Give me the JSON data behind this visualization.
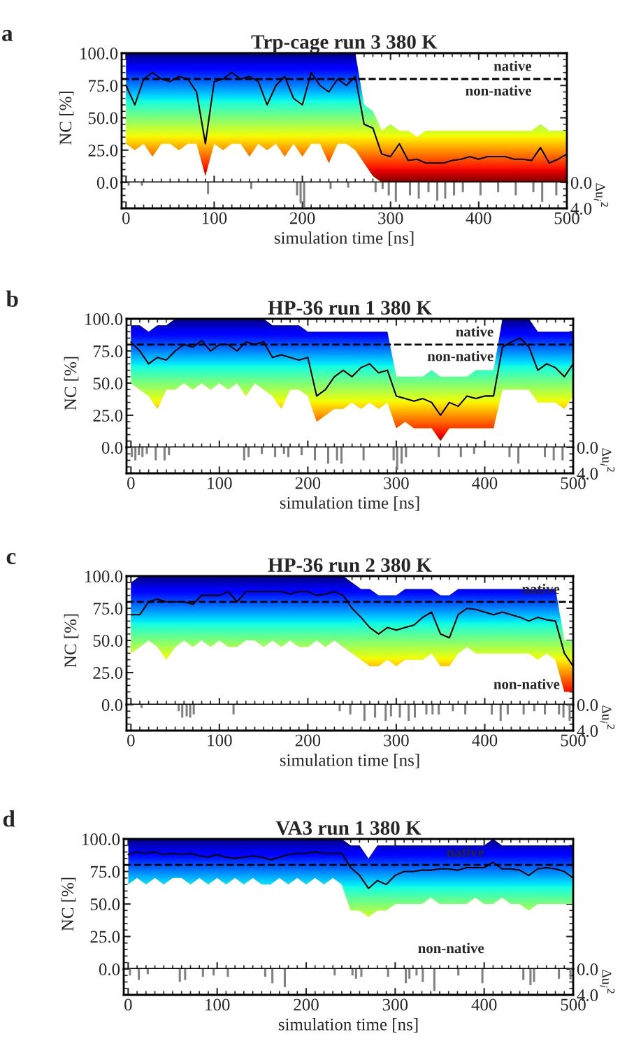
{
  "chart_data": [
    {
      "type": "line",
      "title": "Trp-cage run 3 380 K",
      "ylabel": "NC [%]",
      "xlim": [
        -5,
        500
      ],
      "xticks": [
        0,
        100,
        200,
        300,
        400,
        500
      ],
      "ylim": [
        0,
        100
      ],
      "yticks": [
        {
          "value": 0,
          "label": "0.0"
        },
        {
          "value": 25,
          "label": "25.0"
        },
        {
          "value": 50,
          "label": "50.0"
        },
        {
          "value": 75,
          "label": "75.0"
        },
        {
          "value": 100,
          "label": "100.0"
        }
      ],
      "tick_labels": "y",
      "x": [
        0,
        10,
        20,
        30,
        40,
        50,
        60,
        70,
        80,
        90,
        100,
        110,
        120,
        130,
        140,
        150,
        160,
        170,
        180,
        190,
        200,
        210,
        220,
        230,
        240,
        250,
        260,
        270,
        280,
        290,
        300,
        310,
        320,
        330,
        340,
        350,
        360,
        370,
        380,
        390,
        400,
        410,
        420,
        430,
        440,
        450,
        460,
        470,
        480,
        490,
        500
      ],
      "series": [
        {
          "type": "line",
          "color": "#000000",
          "values": [
            75,
            60,
            80,
            85,
            80,
            78,
            82,
            80,
            70,
            30,
            78,
            80,
            85,
            80,
            82,
            78,
            60,
            75,
            82,
            65,
            60,
            85,
            75,
            70,
            80,
            75,
            82,
            45,
            42,
            22,
            20,
            30,
            17,
            18,
            15,
            15,
            15,
            17,
            18,
            20,
            18,
            20,
            20,
            20,
            18,
            18,
            17,
            27,
            15,
            18,
            22
          ],
          "lower": [
            30,
            25,
            30,
            20,
            30,
            30,
            25,
            30,
            30,
            5,
            30,
            25,
            30,
            30,
            20,
            30,
            25,
            30,
            20,
            30,
            20,
            30,
            30,
            15,
            30,
            30,
            25,
            15,
            5,
            0,
            0,
            0,
            0,
            0,
            0,
            0,
            0,
            0,
            0,
            0,
            0,
            0,
            0,
            0,
            0,
            0,
            0,
            0,
            0,
            0,
            0
          ],
          "upper": [
            100,
            100,
            100,
            100,
            100,
            100,
            100,
            100,
            100,
            100,
            100,
            100,
            100,
            100,
            100,
            100,
            100,
            100,
            100,
            100,
            100,
            100,
            100,
            100,
            100,
            100,
            100,
            60,
            55,
            40,
            45,
            40,
            40,
            35,
            40,
            40,
            40,
            40,
            40,
            40,
            40,
            40,
            40,
            40,
            40,
            40,
            40,
            45,
            40,
            40,
            40
          ]
        }
      ],
      "ref_lines": [
        {
          "axis": "y",
          "value": 80,
          "line_style": "dashed",
          "color": "#000000"
        }
      ],
      "annotations": [
        "a",
        "native",
        "non-native"
      ]
    },
    {
      "type": "bar",
      "xlabel": "simulation time [ns]",
      "ylabel": "Δu$_{i}$$^{2}$",
      "xlim": [
        -5,
        500
      ],
      "xticks": [
        0,
        100,
        200,
        300,
        400,
        500
      ],
      "ylim": [
        4,
        0
      ],
      "yticks": [
        {
          "value": 0,
          "label": "0.0"
        },
        {
          "value": 4,
          "label": "4.0"
        }
      ],
      "color": "#808080",
      "x": [
        3,
        18,
        93,
        142,
        194,
        198,
        202,
        232,
        252,
        283,
        291,
        298,
        306,
        322,
        332,
        343,
        353,
        362,
        372,
        382,
        402,
        422,
        442,
        462,
        472,
        488
      ],
      "values": [
        0.5,
        0.5,
        1.8,
        1.0,
        2.0,
        3.2,
        3.8,
        1.0,
        0.8,
        1.5,
        1.0,
        2.0,
        3.0,
        2.0,
        2.5,
        1.5,
        2.8,
        2.5,
        2.0,
        1.5,
        2.0,
        1.5,
        2.0,
        1.5,
        3.0,
        2.0
      ]
    },
    {
      "type": "line",
      "title": "HP-36 run 1 380 K",
      "ylabel": "NC [%]",
      "xlim": [
        -5,
        500
      ],
      "xticks": [
        0,
        100,
        200,
        300,
        400,
        500
      ],
      "ylim": [
        0,
        100
      ],
      "yticks": [
        {
          "value": 0,
          "label": "0.0"
        },
        {
          "value": 25,
          "label": "25.0"
        },
        {
          "value": 50,
          "label": "50.0"
        },
        {
          "value": 75,
          "label": "75.0"
        },
        {
          "value": 100,
          "label": "100.0"
        }
      ],
      "tick_labels": "y",
      "x": [
        0,
        10,
        20,
        30,
        40,
        50,
        60,
        70,
        80,
        90,
        100,
        110,
        120,
        130,
        140,
        150,
        160,
        170,
        180,
        190,
        200,
        210,
        220,
        230,
        240,
        250,
        260,
        270,
        280,
        290,
        300,
        310,
        320,
        330,
        340,
        350,
        360,
        370,
        380,
        390,
        400,
        410,
        420,
        430,
        440,
        450,
        460,
        470,
        480,
        490,
        500
      ],
      "series": [
        {
          "type": "line",
          "color": "#000000",
          "values": [
            82,
            75,
            65,
            70,
            68,
            75,
            80,
            78,
            83,
            75,
            80,
            80,
            75,
            82,
            80,
            82,
            70,
            72,
            70,
            68,
            70,
            40,
            45,
            55,
            60,
            55,
            62,
            65,
            58,
            60,
            40,
            38,
            36,
            38,
            35,
            25,
            35,
            32,
            40,
            38,
            40,
            40,
            78,
            82,
            85,
            78,
            60,
            65,
            62,
            55,
            65
          ],
          "lower": [
            50,
            45,
            40,
            30,
            45,
            45,
            50,
            45,
            50,
            45,
            50,
            45,
            50,
            40,
            50,
            45,
            40,
            30,
            45,
            45,
            40,
            20,
            25,
            30,
            30,
            35,
            30,
            35,
            30,
            35,
            15,
            20,
            15,
            15,
            15,
            5,
            15,
            15,
            15,
            15,
            15,
            15,
            45,
            45,
            45,
            45,
            35,
            35,
            35,
            30,
            40
          ],
          "upper": [
            95,
            95,
            90,
            95,
            95,
            100,
            100,
            100,
            100,
            100,
            100,
            100,
            100,
            100,
            100,
            100,
            95,
            95,
            95,
            95,
            90,
            90,
            90,
            90,
            90,
            90,
            90,
            90,
            90,
            90,
            55,
            55,
            55,
            55,
            60,
            55,
            55,
            55,
            55,
            60,
            60,
            60,
            100,
            100,
            100,
            100,
            90,
            90,
            90,
            90,
            90
          ]
        }
      ],
      "ref_lines": [
        {
          "axis": "y",
          "value": 80,
          "line_style": "dashed",
          "color": "#000000"
        }
      ],
      "annotations": [
        "b",
        "native",
        "non-native"
      ]
    },
    {
      "type": "bar",
      "xlabel": "simulation time [ns]",
      "ylabel": "Δu$_{i}$$^{2}$",
      "xlim": [
        -5,
        500
      ],
      "xticks": [
        0,
        100,
        200,
        300,
        400,
        500
      ],
      "ylim": [
        4,
        0
      ],
      "yticks": [
        {
          "value": 0,
          "label": "0.0"
        },
        {
          "value": 4,
          "label": "4.0"
        }
      ],
      "color": "#808080",
      "x": [
        1,
        5,
        9,
        13,
        18,
        28,
        38,
        43,
        128,
        133,
        148,
        163,
        173,
        178,
        193,
        208,
        223,
        233,
        238,
        263,
        297,
        301,
        306,
        311,
        348,
        373,
        388,
        428,
        438,
        468,
        478,
        488
      ],
      "values": [
        1.5,
        2.0,
        1.2,
        1.5,
        1.0,
        2.0,
        2.0,
        1.2,
        2.0,
        1.5,
        1.0,
        1.5,
        1.0,
        1.5,
        1.2,
        2.0,
        2.5,
        2.0,
        2.5,
        2.0,
        2.0,
        3.5,
        2.5,
        1.5,
        1.5,
        1.5,
        1.0,
        1.5,
        2.5,
        1.5,
        2.0,
        2.0
      ]
    },
    {
      "type": "line",
      "title": "HP-36 run 2 380 K",
      "ylabel": "NC [%]",
      "xlim": [
        -5,
        500
      ],
      "xticks": [
        0,
        100,
        200,
        300,
        400,
        500
      ],
      "ylim": [
        0,
        100
      ],
      "yticks": [
        {
          "value": 0,
          "label": "0.0"
        },
        {
          "value": 25,
          "label": "25.0"
        },
        {
          "value": 50,
          "label": "50.0"
        },
        {
          "value": 75,
          "label": "75.0"
        },
        {
          "value": 100,
          "label": "100.0"
        }
      ],
      "tick_labels": "y",
      "x": [
        0,
        10,
        20,
        30,
        40,
        50,
        60,
        70,
        80,
        90,
        100,
        110,
        120,
        130,
        140,
        150,
        160,
        170,
        180,
        190,
        200,
        210,
        220,
        230,
        240,
        250,
        260,
        270,
        280,
        290,
        300,
        310,
        320,
        330,
        340,
        350,
        360,
        370,
        380,
        390,
        400,
        410,
        420,
        430,
        440,
        450,
        460,
        470,
        480,
        490,
        500
      ],
      "series": [
        {
          "type": "line",
          "color": "#000000",
          "values": [
            70,
            70,
            80,
            82,
            80,
            80,
            80,
            78,
            85,
            85,
            85,
            88,
            80,
            88,
            88,
            88,
            88,
            88,
            86,
            88,
            88,
            85,
            86,
            88,
            85,
            75,
            68,
            60,
            55,
            60,
            58,
            60,
            62,
            68,
            72,
            55,
            52,
            70,
            75,
            74,
            72,
            70,
            72,
            70,
            68,
            65,
            68,
            66,
            65,
            40,
            30
          ],
          "lower": [
            40,
            45,
            50,
            45,
            35,
            45,
            50,
            45,
            50,
            45,
            50,
            45,
            45,
            50,
            50,
            45,
            50,
            45,
            50,
            45,
            45,
            50,
            45,
            50,
            45,
            40,
            35,
            30,
            30,
            35,
            30,
            35,
            35,
            35,
            40,
            30,
            30,
            40,
            45,
            40,
            40,
            40,
            40,
            40,
            40,
            40,
            35,
            40,
            35,
            10,
            10
          ],
          "upper": [
            95,
            100,
            100,
            100,
            100,
            100,
            100,
            100,
            100,
            100,
            100,
            100,
            100,
            100,
            100,
            100,
            100,
            100,
            100,
            100,
            100,
            100,
            100,
            100,
            100,
            95,
            90,
            90,
            85,
            85,
            85,
            90,
            90,
            90,
            90,
            85,
            85,
            90,
            90,
            90,
            90,
            90,
            90,
            90,
            90,
            90,
            90,
            90,
            90,
            50,
            50
          ]
        }
      ],
      "ref_lines": [
        {
          "axis": "y",
          "value": 80,
          "line_style": "dashed",
          "color": "#000000"
        }
      ],
      "annotations": [
        "c",
        "native",
        "non-native"
      ]
    },
    {
      "type": "bar",
      "xlabel": "simulation time [ns]",
      "ylabel": "Δu$_{i}$$^{2}$",
      "xlim": [
        -5,
        500
      ],
      "xticks": [
        0,
        100,
        200,
        300,
        400,
        500
      ],
      "ylim": [
        4,
        0
      ],
      "yticks": [
        {
          "value": 0,
          "label": "0.0"
        },
        {
          "value": 4,
          "label": "4.0"
        }
      ],
      "color": "#808080",
      "x": [
        12,
        54,
        58,
        63,
        67,
        71,
        116,
        236,
        248,
        264,
        276,
        288,
        294,
        304,
        314,
        321,
        334,
        341,
        348,
        364,
        378,
        408,
        418,
        426,
        444,
        456,
        468,
        484,
        489,
        496
      ],
      "values": [
        0.5,
        1.0,
        2.0,
        1.8,
        2.0,
        1.5,
        1.5,
        1.0,
        1.5,
        2.5,
        2.0,
        2.5,
        1.8,
        2.0,
        2.5,
        2.0,
        1.5,
        1.5,
        1.5,
        1.0,
        1.5,
        1.5,
        2.5,
        1.5,
        1.5,
        1.0,
        1.5,
        1.5,
        2.0,
        2.5
      ]
    },
    {
      "type": "line",
      "title": "VA3 run 1 380 K",
      "ylabel": "NC [%]",
      "xlim": [
        -5,
        500
      ],
      "xticks": [
        0,
        100,
        200,
        300,
        400,
        500
      ],
      "ylim": [
        0,
        100
      ],
      "yticks": [
        {
          "value": 0,
          "label": "0.0"
        },
        {
          "value": 25,
          "label": "25.0"
        },
        {
          "value": 50,
          "label": "50.0"
        },
        {
          "value": 75,
          "label": "75.0"
        },
        {
          "value": 100,
          "label": "100.0"
        }
      ],
      "tick_labels": "y",
      "x": [
        0,
        10,
        20,
        30,
        40,
        50,
        60,
        70,
        80,
        90,
        100,
        110,
        120,
        130,
        140,
        150,
        160,
        170,
        180,
        190,
        200,
        210,
        220,
        230,
        240,
        250,
        260,
        270,
        280,
        290,
        300,
        310,
        320,
        330,
        340,
        350,
        360,
        370,
        380,
        390,
        400,
        410,
        420,
        430,
        440,
        450,
        460,
        470,
        480,
        490,
        500
      ],
      "series": [
        {
          "type": "line",
          "color": "#000000",
          "values": [
            88,
            90,
            89,
            90,
            88,
            89,
            88,
            89,
            87,
            86,
            88,
            86,
            85,
            86,
            87,
            86,
            84,
            86,
            88,
            89,
            89,
            90,
            89,
            89,
            89,
            78,
            72,
            62,
            68,
            65,
            72,
            75,
            75,
            76,
            76,
            77,
            77,
            76,
            78,
            78,
            78,
            82,
            77,
            77,
            76,
            72,
            77,
            78,
            77,
            75,
            70
          ],
          "lower": [
            65,
            70,
            65,
            70,
            65,
            70,
            70,
            65,
            70,
            65,
            70,
            65,
            70,
            65,
            70,
            65,
            65,
            70,
            65,
            70,
            65,
            70,
            65,
            70,
            65,
            45,
            45,
            40,
            45,
            45,
            50,
            50,
            50,
            50,
            55,
            50,
            50,
            50,
            50,
            55,
            50,
            50,
            55,
            50,
            50,
            45,
            50,
            50,
            50,
            50,
            50
          ],
          "upper": [
            100,
            100,
            100,
            100,
            100,
            100,
            100,
            100,
            100,
            100,
            100,
            100,
            100,
            100,
            100,
            100,
            100,
            100,
            100,
            100,
            100,
            100,
            100,
            100,
            100,
            95,
            95,
            85,
            95,
            95,
            95,
            95,
            95,
            95,
            95,
            95,
            95,
            95,
            95,
            95,
            95,
            100,
            95,
            95,
            95,
            95,
            95,
            95,
            95,
            95,
            95
          ]
        }
      ],
      "ref_lines": [
        {
          "axis": "y",
          "value": 80,
          "line_style": "dashed",
          "color": "#000000"
        }
      ],
      "annotations": [
        "d",
        "native",
        "non-native"
      ]
    },
    {
      "type": "bar",
      "xlabel": "simulation time [ns]",
      "ylabel": "Δu$_{i}$$^{2}$",
      "xlim": [
        -5,
        500
      ],
      "xticks": [
        0,
        100,
        200,
        300,
        400,
        500
      ],
      "ylim": [
        4,
        0
      ],
      "yticks": [
        {
          "value": 0,
          "label": "0.0"
        },
        {
          "value": 4,
          "label": "4.0"
        }
      ],
      "color": "#808080",
      "x": [
        2,
        12,
        22,
        58,
        64,
        84,
        96,
        112,
        154,
        162,
        176,
        232,
        252,
        256,
        262,
        292,
        312,
        316,
        324,
        331,
        344,
        371,
        398,
        444,
        452,
        456,
        484,
        497
      ],
      "values": [
        1.0,
        1.7,
        0.8,
        2.0,
        1.7,
        1.2,
        1.0,
        1.2,
        1.2,
        2.2,
        2.8,
        1.0,
        1.0,
        1.5,
        1.2,
        1.2,
        2.2,
        1.5,
        1.0,
        2.0,
        3.4,
        1.0,
        2.2,
        1.7,
        2.5,
        2.0,
        1.5,
        1.6
      ]
    }
  ]
}
